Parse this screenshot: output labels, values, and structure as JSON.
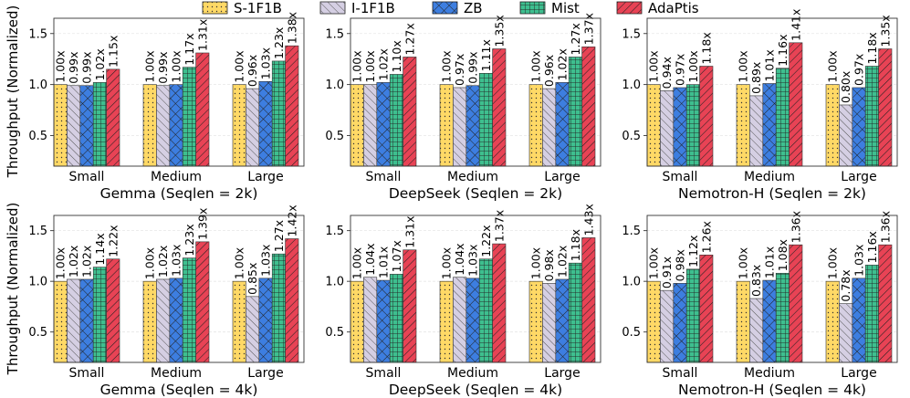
{
  "legend": [
    {
      "key": "s1f1b",
      "label": "S-1F1B",
      "color": "#ffd966",
      "pattern": "dots"
    },
    {
      "key": "i1f1b",
      "label": "I-1F1B",
      "color": "#d5cfe3",
      "pattern": "diag-back"
    },
    {
      "key": "zb",
      "label": "ZB",
      "color": "#3d7ee0",
      "pattern": "cross"
    },
    {
      "key": "mist",
      "label": "Mist",
      "color": "#3ebf8f",
      "pattern": "grid"
    },
    {
      "key": "adaptis",
      "label": "AdaPtis",
      "color": "#e84355",
      "pattern": "diag-fwd"
    }
  ],
  "y_axis_label": "Throughput (Normalized)",
  "chart_data": [
    {
      "type": "bar",
      "title": "Gemma (Seqlen = 2k)",
      "categories": [
        "Small",
        "Medium",
        "Large"
      ],
      "ylim": [
        0.2,
        1.65
      ],
      "yticks": [
        "0.5",
        "1.0",
        "1.5"
      ],
      "series": [
        {
          "name": "S-1F1B",
          "values": [
            1.0,
            1.0,
            1.0
          ],
          "labels": [
            "1.00x",
            "1.00x",
            "1.00x"
          ]
        },
        {
          "name": "I-1F1B",
          "values": [
            0.99,
            0.99,
            0.96
          ],
          "labels": [
            "0.99x",
            "0.99x",
            "0.96x"
          ]
        },
        {
          "name": "ZB",
          "values": [
            0.99,
            1.0,
            1.03
          ],
          "labels": [
            "0.99x",
            "1.00x",
            "1.03x"
          ]
        },
        {
          "name": "Mist",
          "values": [
            1.02,
            1.17,
            1.23
          ],
          "labels": [
            "1.02x",
            "1.17x",
            "1.23x"
          ]
        },
        {
          "name": "AdaPtis",
          "values": [
            1.15,
            1.31,
            1.38
          ],
          "labels": [
            "1.15x",
            "1.31x",
            "1.38x"
          ]
        }
      ]
    },
    {
      "type": "bar",
      "title": "DeepSeek (Seqlen = 2k)",
      "categories": [
        "Small",
        "Medium",
        "Large"
      ],
      "ylim": [
        0.2,
        1.65
      ],
      "yticks": [
        "0.5",
        "1.0",
        "1.5"
      ],
      "series": [
        {
          "name": "S-1F1B",
          "values": [
            1.0,
            1.0,
            1.0
          ],
          "labels": [
            "1.00x",
            "1.00x",
            "1.00x"
          ]
        },
        {
          "name": "I-1F1B",
          "values": [
            1.0,
            0.97,
            0.96
          ],
          "labels": [
            "1.00x",
            "0.97x",
            "0.96x"
          ]
        },
        {
          "name": "ZB",
          "values": [
            1.02,
            0.99,
            1.02
          ],
          "labels": [
            "1.02x",
            "0.99x",
            "1.02x"
          ]
        },
        {
          "name": "Mist",
          "values": [
            1.1,
            1.11,
            1.27
          ],
          "labels": [
            "1.10x",
            "1.11x",
            "1.27x"
          ]
        },
        {
          "name": "AdaPtis",
          "values": [
            1.27,
            1.35,
            1.37
          ],
          "labels": [
            "1.27x",
            "1.35x",
            "1.37x"
          ]
        }
      ]
    },
    {
      "type": "bar",
      "title": "Nemotron-H (Seqlen = 2k)",
      "categories": [
        "Small",
        "Medium",
        "Large"
      ],
      "ylim": [
        0.2,
        1.65
      ],
      "yticks": [
        "0.5",
        "1.0",
        "1.5"
      ],
      "series": [
        {
          "name": "S-1F1B",
          "values": [
            1.0,
            1.0,
            1.0
          ],
          "labels": [
            "1.00x",
            "1.00x",
            "1.00x"
          ]
        },
        {
          "name": "I-1F1B",
          "values": [
            0.94,
            0.89,
            0.8
          ],
          "labels": [
            "0.94x",
            "0.89x",
            "0.80x"
          ]
        },
        {
          "name": "ZB",
          "values": [
            0.97,
            1.01,
            0.97
          ],
          "labels": [
            "0.97x",
            "1.01x",
            "0.97x"
          ]
        },
        {
          "name": "Mist",
          "values": [
            1.0,
            1.16,
            1.18
          ],
          "labels": [
            "1.00x",
            "1.16x",
            "1.18x"
          ]
        },
        {
          "name": "AdaPtis",
          "values": [
            1.18,
            1.41,
            1.35
          ],
          "labels": [
            "1.18x",
            "1.41x",
            "1.35x"
          ]
        }
      ]
    },
    {
      "type": "bar",
      "title": "Gemma (Seqlen = 4k)",
      "categories": [
        "Small",
        "Medium",
        "Large"
      ],
      "ylim": [
        0.2,
        1.65
      ],
      "yticks": [
        "0.5",
        "1.0",
        "1.5"
      ],
      "series": [
        {
          "name": "S-1F1B",
          "values": [
            1.0,
            1.0,
            1.0
          ],
          "labels": [
            "1.00x",
            "1.00x",
            "1.00x"
          ]
        },
        {
          "name": "I-1F1B",
          "values": [
            1.02,
            1.02,
            0.85
          ],
          "labels": [
            "1.02x",
            "1.02x",
            "0.85x"
          ]
        },
        {
          "name": "ZB",
          "values": [
            1.02,
            1.03,
            1.03
          ],
          "labels": [
            "1.02x",
            "1.03x",
            "1.03x"
          ]
        },
        {
          "name": "Mist",
          "values": [
            1.14,
            1.23,
            1.27
          ],
          "labels": [
            "1.14x",
            "1.23x",
            "1.27x"
          ]
        },
        {
          "name": "AdaPtis",
          "values": [
            1.22,
            1.39,
            1.42
          ],
          "labels": [
            "1.22x",
            "1.39x",
            "1.42x"
          ]
        }
      ]
    },
    {
      "type": "bar",
      "title": "DeepSeek (Seqlen = 4k)",
      "categories": [
        "Small",
        "Medium",
        "Large"
      ],
      "ylim": [
        0.2,
        1.65
      ],
      "yticks": [
        "0.5",
        "1.0",
        "1.5"
      ],
      "series": [
        {
          "name": "S-1F1B",
          "values": [
            1.0,
            1.0,
            1.0
          ],
          "labels": [
            "1.00x",
            "1.00x",
            "1.00x"
          ]
        },
        {
          "name": "I-1F1B",
          "values": [
            1.04,
            1.04,
            0.98
          ],
          "labels": [
            "1.04x",
            "1.04x",
            "0.98x"
          ]
        },
        {
          "name": "ZB",
          "values": [
            1.01,
            1.03,
            1.02
          ],
          "labels": [
            "1.01x",
            "1.03x",
            "1.02x"
          ]
        },
        {
          "name": "Mist",
          "values": [
            1.07,
            1.22,
            1.18
          ],
          "labels": [
            "1.07x",
            "1.22x",
            "1.18x"
          ]
        },
        {
          "name": "AdaPtis",
          "values": [
            1.31,
            1.37,
            1.43
          ],
          "labels": [
            "1.31x",
            "1.37x",
            "1.43x"
          ]
        }
      ]
    },
    {
      "type": "bar",
      "title": "Nemotron-H (Seqlen = 4k)",
      "categories": [
        "Small",
        "Medium",
        "Large"
      ],
      "ylim": [
        0.2,
        1.65
      ],
      "yticks": [
        "0.5",
        "1.0",
        "1.5"
      ],
      "series": [
        {
          "name": "S-1F1B",
          "values": [
            1.0,
            1.0,
            1.0
          ],
          "labels": [
            "1.00x",
            "1.00x",
            "1.00x"
          ]
        },
        {
          "name": "I-1F1B",
          "values": [
            0.91,
            0.83,
            0.78
          ],
          "labels": [
            "0.91x",
            "0.83x",
            "0.78x"
          ]
        },
        {
          "name": "ZB",
          "values": [
            0.98,
            1.01,
            1.03
          ],
          "labels": [
            "0.98x",
            "1.01x",
            "1.03x"
          ]
        },
        {
          "name": "Mist",
          "values": [
            1.12,
            1.08,
            1.16
          ],
          "labels": [
            "1.12x",
            "1.08x",
            "1.16x"
          ]
        },
        {
          "name": "AdaPtis",
          "values": [
            1.26,
            1.36,
            1.36
          ],
          "labels": [
            "1.26x",
            "1.36x",
            "1.36x"
          ]
        }
      ]
    }
  ]
}
